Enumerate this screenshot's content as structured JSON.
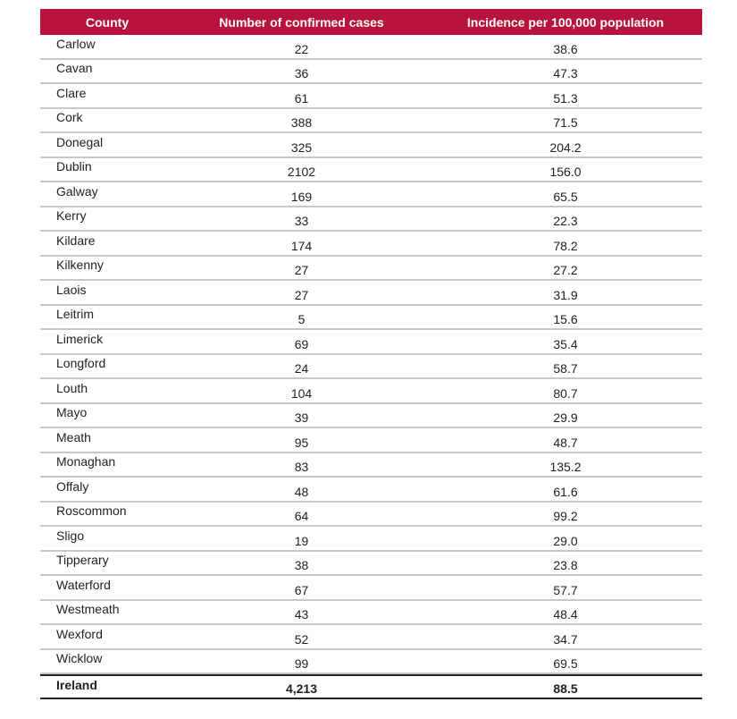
{
  "table": {
    "headers": {
      "county": "County",
      "cases": "Number of confirmed cases",
      "incidence": "Incidence per 100,000 population"
    },
    "rows": [
      {
        "county": "Carlow",
        "cases": "22",
        "incidence": "38.6"
      },
      {
        "county": "Cavan",
        "cases": "36",
        "incidence": "47.3"
      },
      {
        "county": "Clare",
        "cases": "61",
        "incidence": "51.3"
      },
      {
        "county": "Cork",
        "cases": "388",
        "incidence": "71.5"
      },
      {
        "county": "Donegal",
        "cases": "325",
        "incidence": "204.2"
      },
      {
        "county": "Dublin",
        "cases": "2102",
        "incidence": "156.0"
      },
      {
        "county": "Galway",
        "cases": "169",
        "incidence": "65.5"
      },
      {
        "county": "Kerry",
        "cases": "33",
        "incidence": "22.3"
      },
      {
        "county": "Kildare",
        "cases": "174",
        "incidence": "78.2"
      },
      {
        "county": "Kilkenny",
        "cases": "27",
        "incidence": "27.2"
      },
      {
        "county": "Laois",
        "cases": "27",
        "incidence": "31.9"
      },
      {
        "county": "Leitrim",
        "cases": "5",
        "incidence": "15.6"
      },
      {
        "county": "Limerick",
        "cases": "69",
        "incidence": "35.4"
      },
      {
        "county": "Longford",
        "cases": "24",
        "incidence": "58.7"
      },
      {
        "county": "Louth",
        "cases": "104",
        "incidence": "80.7"
      },
      {
        "county": "Mayo",
        "cases": "39",
        "incidence": "29.9"
      },
      {
        "county": "Meath",
        "cases": "95",
        "incidence": "48.7"
      },
      {
        "county": "Monaghan",
        "cases": "83",
        "incidence": "135.2"
      },
      {
        "county": "Offaly",
        "cases": "48",
        "incidence": "61.6"
      },
      {
        "county": "Roscommon",
        "cases": "64",
        "incidence": "99.2"
      },
      {
        "county": "Sligo",
        "cases": "19",
        "incidence": "29.0"
      },
      {
        "county": "Tipperary",
        "cases": "38",
        "incidence": "23.8"
      },
      {
        "county": "Waterford",
        "cases": "67",
        "incidence": "57.7"
      },
      {
        "county": "Westmeath",
        "cases": "43",
        "incidence": "48.4"
      },
      {
        "county": "Wexford",
        "cases": "52",
        "incidence": "34.7"
      },
      {
        "county": "Wicklow",
        "cases": "99",
        "incidence": "69.5"
      }
    ],
    "total": {
      "county": "Ireland",
      "cases": "4,213",
      "incidence": "88.5"
    }
  },
  "colors": {
    "header_bg": "#b8133c",
    "header_text": "#ffffff",
    "row_divider": "#c8c8c8",
    "total_rule": "#222222"
  }
}
